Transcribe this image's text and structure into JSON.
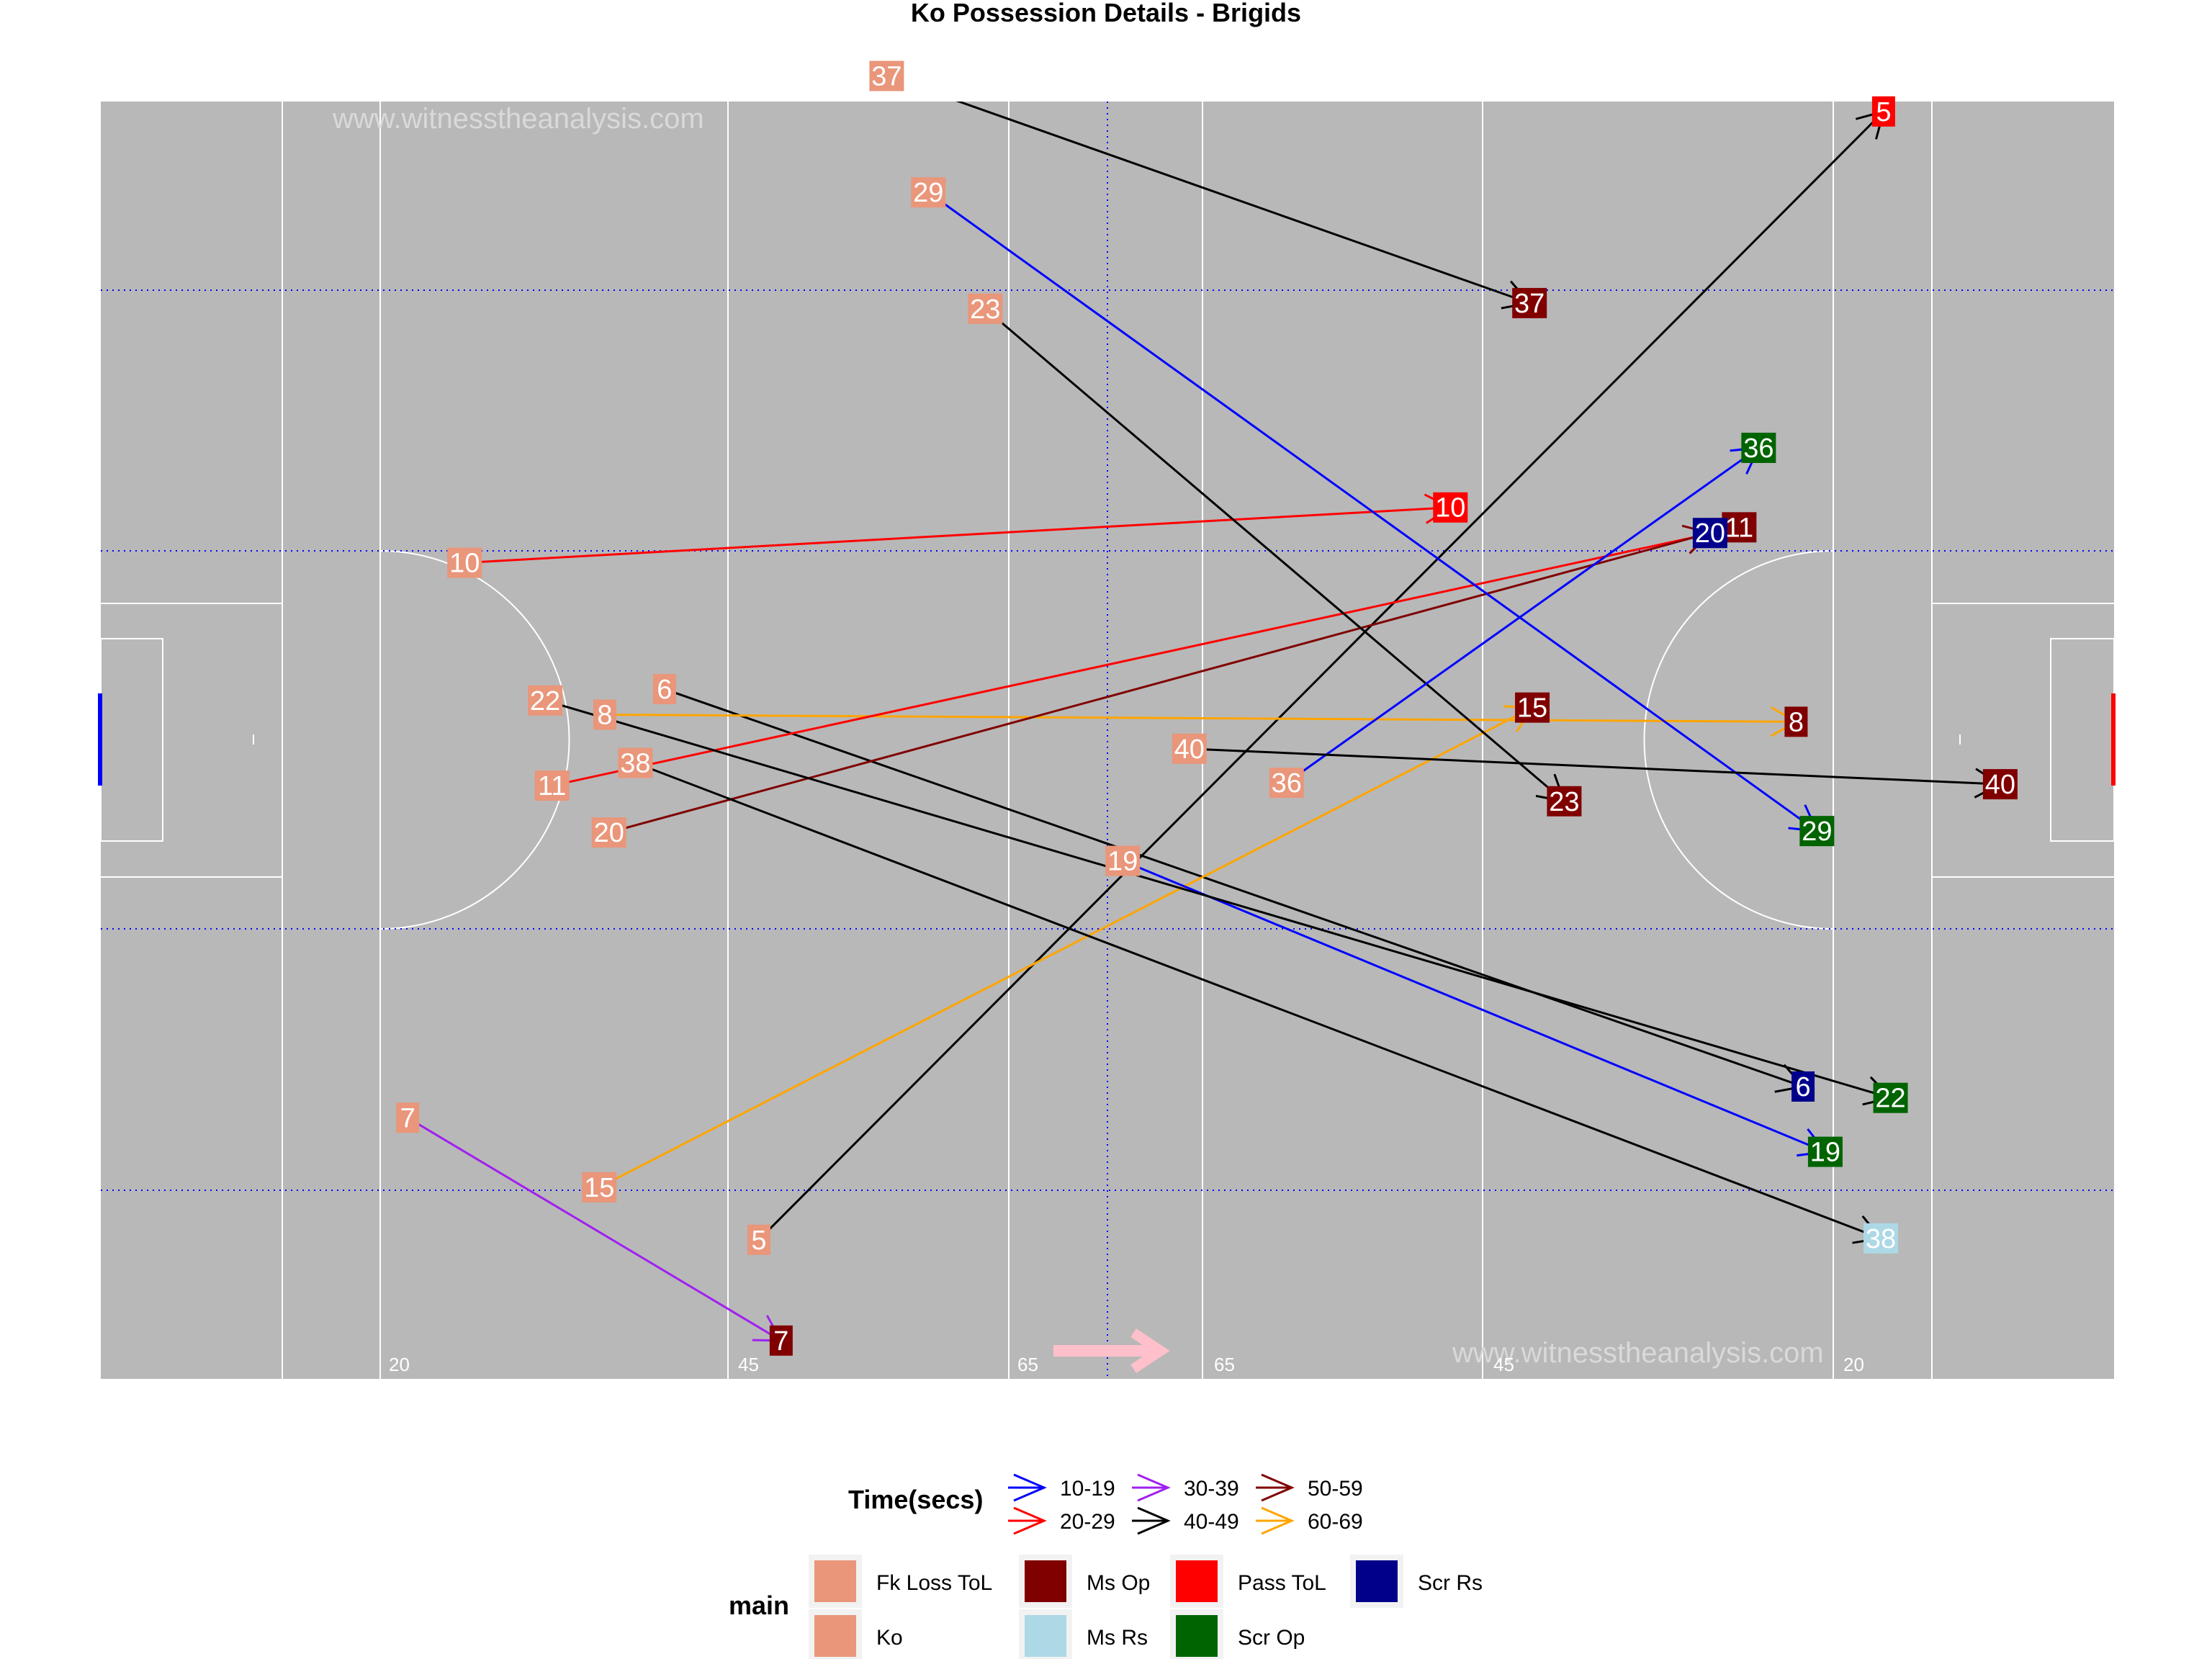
{
  "chart_data": {
    "type": "scatter",
    "title": "Ko Possession Details - Brigids",
    "watermark": "www.witnesstheanalysis.com",
    "x_range": [
      0,
      145
    ],
    "y_range": [
      0,
      90
    ],
    "pitch_marks": [
      "20",
      "45",
      "65",
      "65",
      "45",
      "20"
    ],
    "colors": {
      "pitch": "#b8b8b8",
      "Fk Loss ToL": "#e9967a",
      "Ko": "#e9967a",
      "Ms Op": "#800000",
      "Ms Rs": "#add8e6",
      "Pass ToL": "#ff0000",
      "Scr Op": "#006400",
      "Scr Rs": "#00008b",
      "10-19": "#0000ff",
      "20-29": "#ff0000",
      "30-39": "#a020f0",
      "40-49": "#000000",
      "50-59": "#800000",
      "60-69": "#ffa500"
    },
    "legend_time": {
      "title": "Time(secs)",
      "entries": [
        "10-19",
        "20-29",
        "30-39",
        "40-49",
        "50-59",
        "60-69"
      ]
    },
    "legend_main": {
      "title": "main",
      "entries": [
        "Fk Loss ToL",
        "Ko",
        "Ms Op",
        "Ms Rs",
        "Pass ToL",
        "Scr Op",
        "Scr Rs"
      ]
    },
    "possessions": [
      {
        "label": "5",
        "x0": 47.4,
        "y0": 9.8,
        "x1": 128.4,
        "y1": 89.3,
        "time": "40-49",
        "outcome": "Pass ToL"
      },
      {
        "label": "6",
        "x0": 40.6,
        "y0": 48.6,
        "x1": 122.6,
        "y1": 20.6,
        "time": "40-49",
        "outcome": "Scr Rs"
      },
      {
        "label": "7",
        "x0": 22.1,
        "y0": 18.4,
        "x1": 49.0,
        "y1": 2.7,
        "time": "30-39",
        "outcome": "Ms Op"
      },
      {
        "label": "8",
        "x0": 36.3,
        "y0": 46.8,
        "x1": 122.1,
        "y1": 46.3,
        "time": "60-69",
        "outcome": "Ms Op"
      },
      {
        "label": "10",
        "x0": 26.2,
        "y0": 57.5,
        "x1": 97.2,
        "y1": 61.4,
        "time": "20-29",
        "outcome": "Pass ToL"
      },
      {
        "label": "11",
        "x0": 32.5,
        "y0": 41.8,
        "x1": 118.0,
        "y1": 60.0,
        "time": "20-29",
        "outcome": "Ms Op"
      },
      {
        "label": "15",
        "x0": 35.9,
        "y0": 13.5,
        "x1": 103.1,
        "y1": 47.3,
        "time": "60-69",
        "outcome": "Ms Op"
      },
      {
        "label": "19",
        "x0": 73.6,
        "y0": 36.5,
        "x1": 124.2,
        "y1": 16.0,
        "time": "10-19",
        "outcome": "Scr Op"
      },
      {
        "label": "20",
        "x0": 36.6,
        "y0": 38.5,
        "x1": 115.9,
        "y1": 59.6,
        "time": "50-59",
        "outcome": "Scr Rs"
      },
      {
        "label": "22",
        "x0": 32.0,
        "y0": 47.8,
        "x1": 128.9,
        "y1": 19.8,
        "time": "40-49",
        "outcome": "Scr Op"
      },
      {
        "label": "23",
        "x0": 63.7,
        "y0": 75.4,
        "x1": 105.4,
        "y1": 40.7,
        "time": "40-49",
        "outcome": "Ms Op"
      },
      {
        "label": "29",
        "x0": 59.6,
        "y0": 83.6,
        "x1": 123.6,
        "y1": 38.6,
        "time": "10-19",
        "outcome": "Scr Op"
      },
      {
        "label": "36",
        "x0": 85.4,
        "y0": 42.0,
        "x1": 119.4,
        "y1": 65.6,
        "time": "10-19",
        "outcome": "Scr Op"
      },
      {
        "label": "37",
        "x0": 56.6,
        "y0": 91.8,
        "x1": 102.9,
        "y1": 75.8,
        "time": "40-49",
        "outcome": "Ms Op"
      },
      {
        "label": "38",
        "x0": 38.5,
        "y0": 43.4,
        "x1": 128.2,
        "y1": 9.9,
        "time": "40-49",
        "outcome": "Ms Rs"
      },
      {
        "label": "40",
        "x0": 78.4,
        "y0": 44.4,
        "x1": 136.8,
        "y1": 41.9,
        "time": "40-49",
        "outcome": "Ms Op"
      }
    ]
  }
}
